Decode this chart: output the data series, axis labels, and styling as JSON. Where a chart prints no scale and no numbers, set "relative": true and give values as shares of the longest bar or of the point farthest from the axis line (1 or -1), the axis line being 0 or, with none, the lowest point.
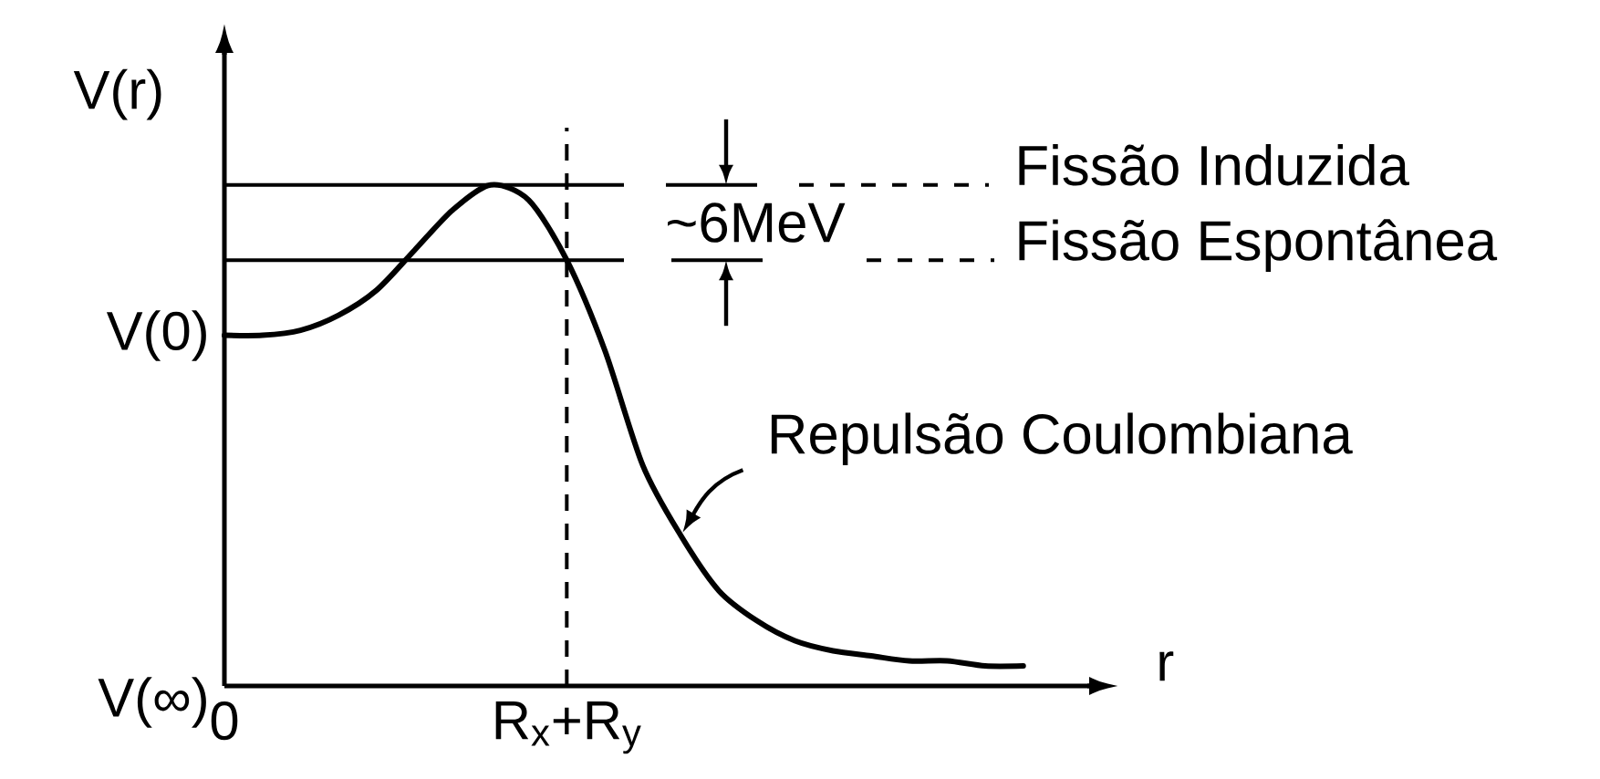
{
  "chart_data": {
    "type": "line",
    "xlabel": "r",
    "ylabel": "V(r)",
    "relative": true,
    "marker": "none",
    "categories": [
      "0",
      null,
      null,
      null,
      null,
      null,
      null,
      null,
      null,
      "R$_{x}$+R$_{y}$",
      null,
      null,
      null,
      null,
      null,
      null,
      null,
      null,
      null,
      null,
      null,
      null
    ],
    "series": [
      {
        "name": "Repulsão Coulombiana",
        "color": "#000000",
        "values": [
          0.7,
          0.7,
          0.71,
          0.74,
          0.79,
          0.87,
          0.95,
          1.0,
          0.97,
          0.85,
          0.67,
          0.44,
          0.3,
          0.19,
          0.13,
          0.09,
          0.07,
          0.06,
          0.05,
          0.05,
          0.04,
          0.04
        ]
      }
    ],
    "ref_lines": [
      {
        "axis": "y",
        "value": 1.0,
        "label": "Fissão Induzida"
      },
      {
        "axis": "y",
        "value": 0.85,
        "label": "Fissão Espontânea"
      },
      {
        "axis": "x",
        "value": "R$_{x}$+R$_{y}$",
        "line_style": "dashed"
      }
    ],
    "annotations": [
      "~6MeV",
      "V(0)",
      "V(∞)"
    ]
  }
}
